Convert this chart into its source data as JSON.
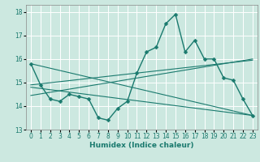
{
  "xlabel": "Humidex (Indice chaleur)",
  "xlim": [
    -0.5,
    23.5
  ],
  "ylim": [
    13,
    18.3
  ],
  "yticks": [
    13,
    14,
    15,
    16,
    17,
    18
  ],
  "xticks": [
    0,
    1,
    2,
    3,
    4,
    5,
    6,
    7,
    8,
    9,
    10,
    11,
    12,
    13,
    14,
    15,
    16,
    17,
    18,
    19,
    20,
    21,
    22,
    23
  ],
  "bg_color": "#cce8e0",
  "grid_color": "#ffffff",
  "line_color": "#1a7a6e",
  "main_line": {
    "x": [
      0,
      1,
      2,
      3,
      4,
      5,
      6,
      7,
      8,
      9,
      10,
      11,
      12,
      13,
      14,
      15,
      16,
      17,
      18,
      19,
      20,
      21,
      22,
      23
    ],
    "y": [
      15.8,
      14.9,
      14.3,
      14.2,
      14.5,
      14.4,
      14.3,
      13.5,
      13.4,
      13.9,
      14.2,
      15.4,
      16.3,
      16.5,
      17.5,
      17.9,
      16.3,
      16.8,
      16.0,
      16.0,
      15.2,
      15.1,
      14.3,
      13.6
    ]
  },
  "straight_lines": [
    {
      "x": [
        0,
        23
      ],
      "y": [
        15.8,
        13.6
      ]
    },
    {
      "x": [
        0,
        23
      ],
      "y": [
        14.9,
        15.95
      ]
    },
    {
      "x": [
        0,
        23
      ],
      "y": [
        14.45,
        16.0
      ]
    },
    {
      "x": [
        0,
        23
      ],
      "y": [
        14.8,
        13.6
      ]
    }
  ]
}
